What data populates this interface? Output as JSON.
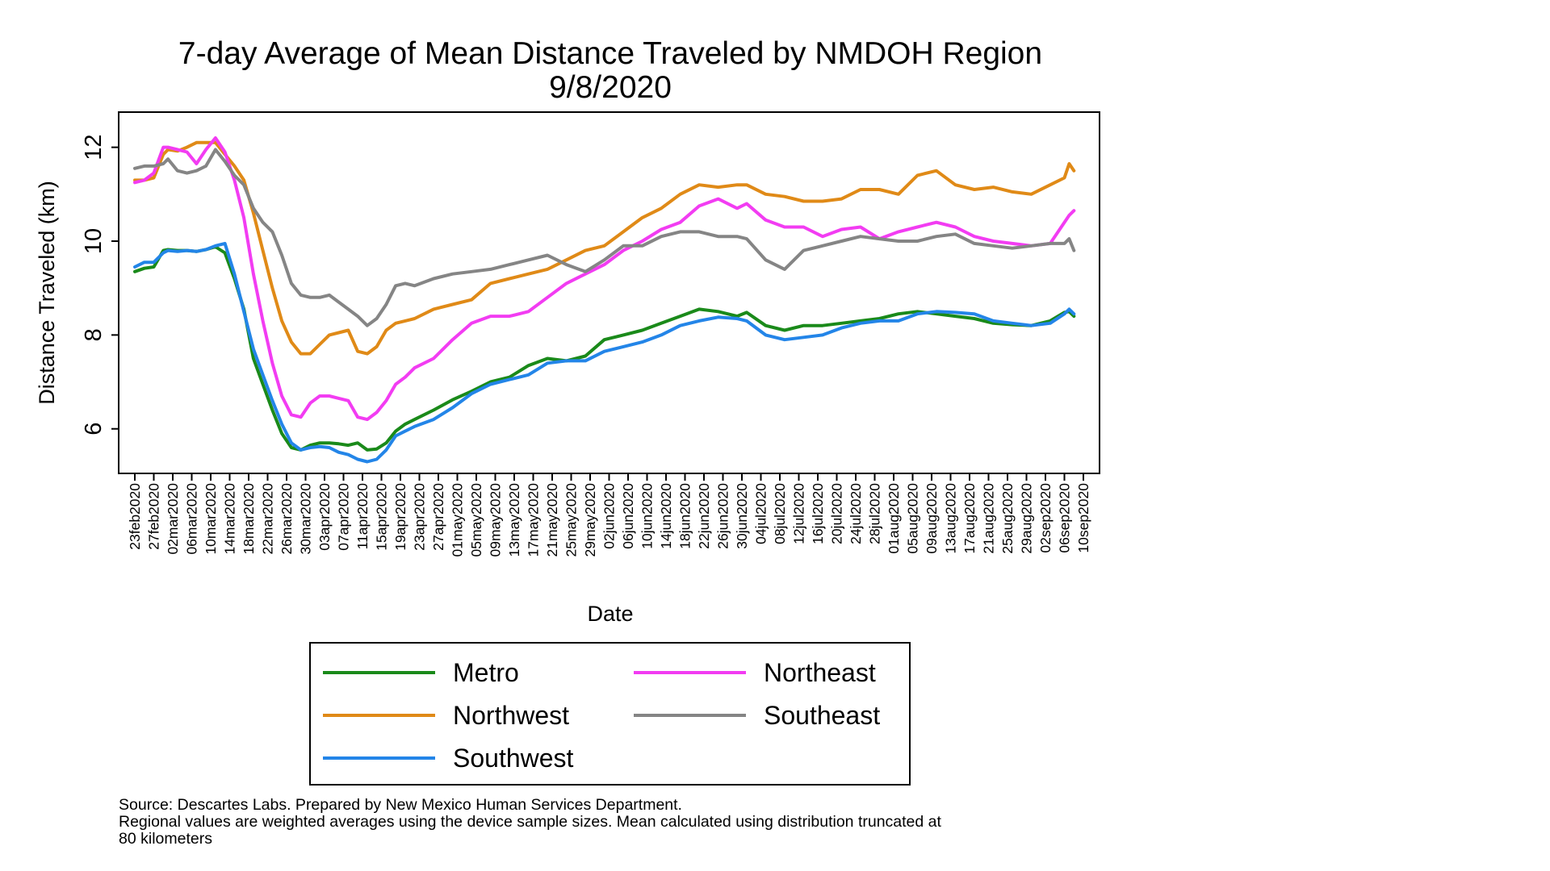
{
  "chart_data": {
    "type": "line",
    "title": "7-day Average of Mean Distance Traveled by NMDOH Region",
    "subtitle": "9/8/2020",
    "xlabel": "Date",
    "ylabel": "Distance Traveled (km)",
    "ylim": [
      5.05,
      12.75
    ],
    "yticks": [
      6,
      8,
      10,
      12
    ],
    "x_start": "23feb2020",
    "x_end": "10sep2020",
    "xticks": [
      "23feb2020",
      "27feb2020",
      "02mar2020",
      "06mar2020",
      "10mar2020",
      "14mar2020",
      "18mar2020",
      "22mar2020",
      "26mar2020",
      "30mar2020",
      "03apr2020",
      "07apr2020",
      "11apr2020",
      "15apr2020",
      "19apr2020",
      "23apr2020",
      "27apr2020",
      "01may2020",
      "05may2020",
      "09may2020",
      "13may2020",
      "17may2020",
      "21may2020",
      "25may2020",
      "29may2020",
      "02jun2020",
      "06jun2020",
      "10jun2020",
      "14jun2020",
      "18jun2020",
      "22jun2020",
      "26jun2020",
      "30jun2020",
      "04jul2020",
      "08jul2020",
      "12jul2020",
      "16jul2020",
      "20jul2020",
      "24jul2020",
      "28jul2020",
      "01aug2020",
      "05aug2020",
      "09aug2020",
      "13aug2020",
      "17aug2020",
      "21aug2020",
      "25aug2020",
      "29aug2020",
      "02sep2020",
      "06sep2020",
      "10sep2020"
    ],
    "grid": false,
    "legend_position": "bottom",
    "series": [
      {
        "name": "Metro",
        "color": "#1a8a1a",
        "x": [
          "23feb2020",
          "25feb2020",
          "27feb2020",
          "29feb2020",
          "01mar2020",
          "03mar2020",
          "05mar2020",
          "07mar2020",
          "09mar2020",
          "11mar2020",
          "13mar2020",
          "15mar2020",
          "17mar2020",
          "19mar2020",
          "21mar2020",
          "23mar2020",
          "25mar2020",
          "27mar2020",
          "29mar2020",
          "31mar2020",
          "02apr2020",
          "04apr2020",
          "06apr2020",
          "08apr2020",
          "10apr2020",
          "12apr2020",
          "14apr2020",
          "16apr2020",
          "18apr2020",
          "20apr2020",
          "22apr2020",
          "26apr2020",
          "30apr2020",
          "04may2020",
          "08may2020",
          "12may2020",
          "16may2020",
          "20may2020",
          "24may2020",
          "28may2020",
          "01jun2020",
          "05jun2020",
          "09jun2020",
          "13jun2020",
          "17jun2020",
          "21jun2020",
          "25jun2020",
          "29jun2020",
          "01jul2020",
          "05jul2020",
          "09jul2020",
          "13jul2020",
          "17jul2020",
          "21jul2020",
          "25jul2020",
          "29jul2020",
          "02aug2020",
          "06aug2020",
          "10aug2020",
          "14aug2020",
          "18aug2020",
          "22aug2020",
          "26aug2020",
          "30aug2020",
          "03sep2020",
          "06sep2020",
          "07sep2020",
          "08sep2020"
        ],
        "y": [
          9.35,
          9.42,
          9.45,
          9.8,
          9.82,
          9.8,
          9.8,
          9.78,
          9.82,
          9.88,
          9.75,
          9.2,
          8.55,
          7.5,
          6.95,
          6.4,
          5.9,
          5.6,
          5.55,
          5.65,
          5.7,
          5.7,
          5.68,
          5.65,
          5.7,
          5.55,
          5.57,
          5.7,
          5.95,
          6.1,
          6.2,
          6.4,
          6.62,
          6.8,
          7.0,
          7.1,
          7.35,
          7.5,
          7.45,
          7.55,
          7.9,
          8.0,
          8.1,
          8.25,
          8.4,
          8.55,
          8.5,
          8.4,
          8.48,
          8.2,
          8.1,
          8.2,
          8.2,
          8.25,
          8.3,
          8.35,
          8.45,
          8.5,
          8.45,
          8.4,
          8.35,
          8.25,
          8.22,
          8.2,
          8.3,
          8.48,
          8.5,
          8.4
        ]
      },
      {
        "name": "Northwest",
        "color": "#e08a17",
        "x": [
          "23feb2020",
          "25feb2020",
          "27feb2020",
          "29feb2020",
          "01mar2020",
          "03mar2020",
          "05mar2020",
          "07mar2020",
          "09mar2020",
          "11mar2020",
          "13mar2020",
          "15mar2020",
          "17mar2020",
          "19mar2020",
          "21mar2020",
          "23mar2020",
          "25mar2020",
          "27mar2020",
          "29mar2020",
          "31mar2020",
          "02apr2020",
          "04apr2020",
          "06apr2020",
          "08apr2020",
          "10apr2020",
          "12apr2020",
          "14apr2020",
          "16apr2020",
          "18apr2020",
          "20apr2020",
          "22apr2020",
          "26apr2020",
          "30apr2020",
          "04may2020",
          "08may2020",
          "12may2020",
          "16may2020",
          "20may2020",
          "24may2020",
          "28may2020",
          "01jun2020",
          "05jun2020",
          "09jun2020",
          "13jun2020",
          "17jun2020",
          "21jun2020",
          "25jun2020",
          "29jun2020",
          "01jul2020",
          "05jul2020",
          "09jul2020",
          "13jul2020",
          "17jul2020",
          "21jul2020",
          "25jul2020",
          "29jul2020",
          "02aug2020",
          "06aug2020",
          "10aug2020",
          "14aug2020",
          "18aug2020",
          "22aug2020",
          "26aug2020",
          "30aug2020",
          "03sep2020",
          "06sep2020",
          "07sep2020",
          "08sep2020"
        ],
        "y": [
          11.3,
          11.3,
          11.35,
          11.85,
          11.95,
          11.92,
          12.0,
          12.1,
          12.1,
          12.1,
          11.85,
          11.6,
          11.3,
          10.6,
          9.8,
          9.0,
          8.3,
          7.85,
          7.6,
          7.6,
          7.8,
          8.0,
          8.05,
          8.1,
          7.65,
          7.6,
          7.75,
          8.1,
          8.25,
          8.3,
          8.35,
          8.55,
          8.65,
          8.75,
          9.1,
          9.2,
          9.3,
          9.4,
          9.6,
          9.8,
          9.9,
          10.2,
          10.5,
          10.7,
          11.0,
          11.2,
          11.15,
          11.2,
          11.2,
          11.0,
          10.95,
          10.85,
          10.85,
          10.9,
          11.1,
          11.1,
          11.0,
          11.4,
          11.5,
          11.2,
          11.1,
          11.15,
          11.05,
          11.0,
          11.2,
          11.35,
          11.65,
          11.5
        ]
      },
      {
        "name": "Southwest",
        "color": "#2385e8",
        "x": [
          "23feb2020",
          "25feb2020",
          "27feb2020",
          "29feb2020",
          "01mar2020",
          "03mar2020",
          "05mar2020",
          "07mar2020",
          "09mar2020",
          "11mar2020",
          "13mar2020",
          "15mar2020",
          "17mar2020",
          "19mar2020",
          "21mar2020",
          "23mar2020",
          "25mar2020",
          "27mar2020",
          "29mar2020",
          "31mar2020",
          "02apr2020",
          "04apr2020",
          "06apr2020",
          "08apr2020",
          "10apr2020",
          "12apr2020",
          "14apr2020",
          "16apr2020",
          "18apr2020",
          "20apr2020",
          "22apr2020",
          "26apr2020",
          "30apr2020",
          "04may2020",
          "08may2020",
          "12may2020",
          "16may2020",
          "20may2020",
          "24may2020",
          "28may2020",
          "01jun2020",
          "05jun2020",
          "09jun2020",
          "13jun2020",
          "17jun2020",
          "21jun2020",
          "25jun2020",
          "29jun2020",
          "01jul2020",
          "05jul2020",
          "09jul2020",
          "13jul2020",
          "17jul2020",
          "21jul2020",
          "25jul2020",
          "29jul2020",
          "02aug2020",
          "06aug2020",
          "10aug2020",
          "14aug2020",
          "18aug2020",
          "22aug2020",
          "26aug2020",
          "30aug2020",
          "03sep2020",
          "06sep2020",
          "07sep2020",
          "08sep2020"
        ],
        "y": [
          9.45,
          9.55,
          9.55,
          9.75,
          9.8,
          9.78,
          9.8,
          9.78,
          9.82,
          9.9,
          9.95,
          9.3,
          8.5,
          7.7,
          7.15,
          6.6,
          6.1,
          5.7,
          5.55,
          5.6,
          5.62,
          5.6,
          5.5,
          5.45,
          5.35,
          5.3,
          5.35,
          5.55,
          5.85,
          5.95,
          6.05,
          6.2,
          6.45,
          6.75,
          6.95,
          7.05,
          7.15,
          7.4,
          7.45,
          7.45,
          7.65,
          7.75,
          7.85,
          8.0,
          8.2,
          8.3,
          8.38,
          8.35,
          8.3,
          8.0,
          7.9,
          7.95,
          8.0,
          8.15,
          8.25,
          8.3,
          8.3,
          8.45,
          8.5,
          8.48,
          8.45,
          8.3,
          8.25,
          8.2,
          8.25,
          8.45,
          8.55,
          8.45
        ]
      },
      {
        "name": "Northeast",
        "color": "#f23cf2",
        "x": [
          "23feb2020",
          "25feb2020",
          "27feb2020",
          "29feb2020",
          "01mar2020",
          "03mar2020",
          "05mar2020",
          "07mar2020",
          "09mar2020",
          "11mar2020",
          "13mar2020",
          "15mar2020",
          "17mar2020",
          "19mar2020",
          "21mar2020",
          "23mar2020",
          "25mar2020",
          "27mar2020",
          "29mar2020",
          "31mar2020",
          "02apr2020",
          "04apr2020",
          "06apr2020",
          "08apr2020",
          "10apr2020",
          "12apr2020",
          "14apr2020",
          "16apr2020",
          "18apr2020",
          "20apr2020",
          "22apr2020",
          "26apr2020",
          "30apr2020",
          "04may2020",
          "08may2020",
          "12may2020",
          "16may2020",
          "20may2020",
          "24may2020",
          "28may2020",
          "01jun2020",
          "05jun2020",
          "09jun2020",
          "13jun2020",
          "17jun2020",
          "21jun2020",
          "25jun2020",
          "29jun2020",
          "01jul2020",
          "05jul2020",
          "09jul2020",
          "13jul2020",
          "17jul2020",
          "21jul2020",
          "25jul2020",
          "29jul2020",
          "02aug2020",
          "06aug2020",
          "10aug2020",
          "14aug2020",
          "18aug2020",
          "22aug2020",
          "26aug2020",
          "30aug2020",
          "03sep2020",
          "06sep2020",
          "07sep2020",
          "08sep2020"
        ],
        "y": [
          11.25,
          11.3,
          11.45,
          12.0,
          12.0,
          11.95,
          11.9,
          11.65,
          11.95,
          12.2,
          11.9,
          11.3,
          10.5,
          9.3,
          8.3,
          7.4,
          6.7,
          6.3,
          6.25,
          6.55,
          6.7,
          6.7,
          6.65,
          6.6,
          6.25,
          6.2,
          6.35,
          6.6,
          6.95,
          7.1,
          7.3,
          7.5,
          7.9,
          8.25,
          8.4,
          8.4,
          8.5,
          8.8,
          9.1,
          9.3,
          9.5,
          9.8,
          10.0,
          10.25,
          10.4,
          10.75,
          10.9,
          10.7,
          10.8,
          10.45,
          10.3,
          10.3,
          10.1,
          10.25,
          10.3,
          10.05,
          10.2,
          10.3,
          10.4,
          10.3,
          10.1,
          10.0,
          9.95,
          9.9,
          9.95,
          10.4,
          10.55,
          10.65
        ]
      },
      {
        "name": "Southeast",
        "color": "#858585",
        "x": [
          "23feb2020",
          "25feb2020",
          "27feb2020",
          "29feb2020",
          "01mar2020",
          "03mar2020",
          "05mar2020",
          "07mar2020",
          "09mar2020",
          "11mar2020",
          "13mar2020",
          "15mar2020",
          "17mar2020",
          "19mar2020",
          "21mar2020",
          "23mar2020",
          "25mar2020",
          "27mar2020",
          "29mar2020",
          "31mar2020",
          "02apr2020",
          "04apr2020",
          "06apr2020",
          "08apr2020",
          "10apr2020",
          "12apr2020",
          "14apr2020",
          "16apr2020",
          "18apr2020",
          "20apr2020",
          "22apr2020",
          "26apr2020",
          "30apr2020",
          "04may2020",
          "08may2020",
          "12may2020",
          "16may2020",
          "20may2020",
          "24may2020",
          "28may2020",
          "01jun2020",
          "05jun2020",
          "09jun2020",
          "13jun2020",
          "17jun2020",
          "21jun2020",
          "25jun2020",
          "29jun2020",
          "01jul2020",
          "05jul2020",
          "09jul2020",
          "13jul2020",
          "17jul2020",
          "21jul2020",
          "25jul2020",
          "29jul2020",
          "02aug2020",
          "06aug2020",
          "10aug2020",
          "14aug2020",
          "18aug2020",
          "22aug2020",
          "26aug2020",
          "30aug2020",
          "03sep2020",
          "06sep2020",
          "07sep2020",
          "08sep2020"
        ],
        "y": [
          11.55,
          11.6,
          11.6,
          11.65,
          11.75,
          11.5,
          11.45,
          11.5,
          11.6,
          11.95,
          11.7,
          11.4,
          11.2,
          10.7,
          10.4,
          10.2,
          9.7,
          9.1,
          8.85,
          8.8,
          8.8,
          8.85,
          8.7,
          8.55,
          8.4,
          8.2,
          8.35,
          8.65,
          9.05,
          9.1,
          9.05,
          9.2,
          9.3,
          9.35,
          9.4,
          9.5,
          9.6,
          9.7,
          9.5,
          9.35,
          9.6,
          9.9,
          9.9,
          10.1,
          10.2,
          10.2,
          10.1,
          10.1,
          10.05,
          9.6,
          9.4,
          9.8,
          9.9,
          10.0,
          10.1,
          10.05,
          10.0,
          10.0,
          10.1,
          10.15,
          9.95,
          9.9,
          9.85,
          9.9,
          9.95,
          9.95,
          10.05,
          9.8
        ]
      }
    ]
  },
  "legend": {
    "items": [
      {
        "label": "Metro",
        "color": "#1a8a1a"
      },
      {
        "label": "Northeast",
        "color": "#f23cf2"
      },
      {
        "label": "Northwest",
        "color": "#e08a17"
      },
      {
        "label": "Southeast",
        "color": "#858585"
      },
      {
        "label": "Southwest",
        "color": "#2385e8"
      }
    ]
  },
  "notes": {
    "line1": "Source: Descartes Labs. Prepared by New Mexico Human Services Department.",
    "line2": "Regional values are weighted averages using the device sample sizes. Mean calculated using distribution truncated at",
    "line3": "80 kilometers"
  }
}
